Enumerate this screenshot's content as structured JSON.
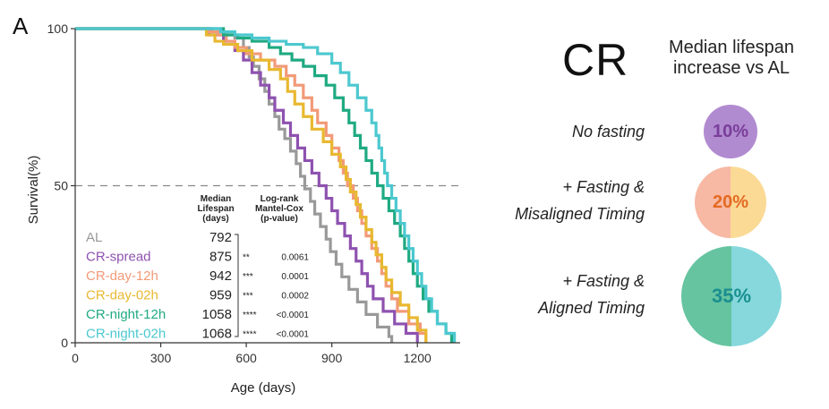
{
  "panel_label": "A",
  "chart_data": {
    "type": "line",
    "subtype": "kaplan-meier",
    "xlabel": "Age (days)",
    "ylabel": "Survival(%)",
    "xlim": [
      0,
      1350
    ],
    "ylim": [
      0,
      100
    ],
    "xticks": [
      0,
      300,
      600,
      900,
      1200
    ],
    "yticks": [
      0,
      50,
      100
    ],
    "reference_line": {
      "y": 50,
      "style": "dashed"
    },
    "table_headers": {
      "median": [
        "Median",
        "Lifespan",
        "(days)"
      ],
      "logrank": [
        "Log-rank",
        "Mantel-Cox",
        "(p-value)"
      ]
    },
    "series": [
      {
        "name": "AL",
        "color": "#999999",
        "median": "792",
        "sig": "",
        "p": "",
        "points": [
          [
            0,
            100
          ],
          [
            420,
            100
          ],
          [
            480,
            99
          ],
          [
            520,
            98
          ],
          [
            560,
            97
          ],
          [
            590,
            94
          ],
          [
            610,
            91
          ],
          [
            625,
            88
          ],
          [
            645,
            84
          ],
          [
            665,
            80
          ],
          [
            680,
            76
          ],
          [
            700,
            72
          ],
          [
            715,
            68
          ],
          [
            735,
            65
          ],
          [
            755,
            61
          ],
          [
            775,
            57
          ],
          [
            790,
            53
          ],
          [
            805,
            49
          ],
          [
            825,
            45
          ],
          [
            840,
            41
          ],
          [
            860,
            37
          ],
          [
            880,
            33
          ],
          [
            895,
            29
          ],
          [
            915,
            25
          ],
          [
            935,
            21
          ],
          [
            960,
            17
          ],
          [
            990,
            13
          ],
          [
            1020,
            9
          ],
          [
            1060,
            5
          ],
          [
            1100,
            2
          ],
          [
            1110,
            0
          ]
        ]
      },
      {
        "name": "CR-spread",
        "color": "#8E52B0",
        "median": "875",
        "sig": "**",
        "p": "0.0061",
        "points": [
          [
            0,
            100
          ],
          [
            430,
            100
          ],
          [
            470,
            98
          ],
          [
            520,
            96
          ],
          [
            560,
            93
          ],
          [
            590,
            90
          ],
          [
            620,
            86
          ],
          [
            650,
            82
          ],
          [
            680,
            78
          ],
          [
            700,
            74
          ],
          [
            730,
            70
          ],
          [
            755,
            66
          ],
          [
            780,
            62
          ],
          [
            805,
            58
          ],
          [
            830,
            54
          ],
          [
            855,
            50
          ],
          [
            880,
            46
          ],
          [
            900,
            42
          ],
          [
            920,
            38
          ],
          [
            945,
            34
          ],
          [
            965,
            30
          ],
          [
            985,
            26
          ],
          [
            1005,
            22
          ],
          [
            1025,
            18
          ],
          [
            1045,
            14
          ],
          [
            1080,
            10
          ],
          [
            1120,
            6
          ],
          [
            1160,
            3
          ],
          [
            1200,
            0
          ]
        ]
      },
      {
        "name": "CR-day-12h",
        "color": "#F29A78",
        "median": "942",
        "sig": "***",
        "p": "0.0001",
        "points": [
          [
            0,
            100
          ],
          [
            430,
            100
          ],
          [
            470,
            99
          ],
          [
            500,
            98
          ],
          [
            530,
            96
          ],
          [
            560,
            94
          ],
          [
            600,
            92
          ],
          [
            650,
            90
          ],
          [
            700,
            88
          ],
          [
            740,
            85
          ],
          [
            770,
            82
          ],
          [
            800,
            78
          ],
          [
            830,
            74
          ],
          [
            850,
            70
          ],
          [
            880,
            66
          ],
          [
            900,
            62
          ],
          [
            925,
            58
          ],
          [
            940,
            54
          ],
          [
            955,
            50
          ],
          [
            975,
            46
          ],
          [
            990,
            42
          ],
          [
            1005,
            38
          ],
          [
            1020,
            34
          ],
          [
            1040,
            30
          ],
          [
            1060,
            26
          ],
          [
            1075,
            22
          ],
          [
            1090,
            18
          ],
          [
            1110,
            14
          ],
          [
            1130,
            10
          ],
          [
            1170,
            6
          ],
          [
            1210,
            3
          ],
          [
            1230,
            0
          ]
        ]
      },
      {
        "name": "CR-day-02h",
        "color": "#E8B830",
        "median": "959",
        "sig": "***",
        "p": "0.0002",
        "points": [
          [
            0,
            100
          ],
          [
            430,
            100
          ],
          [
            460,
            98
          ],
          [
            490,
            96
          ],
          [
            520,
            95
          ],
          [
            570,
            93
          ],
          [
            620,
            90
          ],
          [
            680,
            87
          ],
          [
            720,
            84
          ],
          [
            745,
            80
          ],
          [
            770,
            76
          ],
          [
            800,
            72
          ],
          [
            830,
            68
          ],
          [
            870,
            64
          ],
          [
            900,
            60
          ],
          [
            930,
            56
          ],
          [
            950,
            52
          ],
          [
            965,
            48
          ],
          [
            985,
            44
          ],
          [
            1000,
            40
          ],
          [
            1020,
            36
          ],
          [
            1040,
            32
          ],
          [
            1055,
            28
          ],
          [
            1075,
            24
          ],
          [
            1090,
            20
          ],
          [
            1110,
            16
          ],
          [
            1140,
            12
          ],
          [
            1170,
            8
          ],
          [
            1200,
            4
          ],
          [
            1230,
            0
          ]
        ]
      },
      {
        "name": "CR-night-12h",
        "color": "#1FAA82",
        "median": "1058",
        "sig": "****",
        "p": "<0.0001",
        "points": [
          [
            0,
            100
          ],
          [
            470,
            100
          ],
          [
            520,
            98
          ],
          [
            570,
            97
          ],
          [
            620,
            96
          ],
          [
            680,
            94
          ],
          [
            720,
            92
          ],
          [
            760,
            90
          ],
          [
            800,
            88
          ],
          [
            840,
            85
          ],
          [
            880,
            82
          ],
          [
            910,
            78
          ],
          [
            940,
            74
          ],
          [
            960,
            70
          ],
          [
            980,
            66
          ],
          [
            1000,
            62
          ],
          [
            1020,
            58
          ],
          [
            1040,
            54
          ],
          [
            1060,
            50
          ],
          [
            1080,
            46
          ],
          [
            1100,
            42
          ],
          [
            1120,
            38
          ],
          [
            1140,
            34
          ],
          [
            1155,
            30
          ],
          [
            1170,
            26
          ],
          [
            1185,
            22
          ],
          [
            1200,
            18
          ],
          [
            1220,
            14
          ],
          [
            1240,
            10
          ],
          [
            1270,
            6
          ],
          [
            1300,
            3
          ],
          [
            1320,
            0
          ]
        ]
      },
      {
        "name": "CR-night-02h",
        "color": "#4CC8CF",
        "median": "1068",
        "sig": "****",
        "p": "<0.0001",
        "points": [
          [
            0,
            100
          ],
          [
            480,
            100
          ],
          [
            510,
            99
          ],
          [
            560,
            98
          ],
          [
            620,
            97
          ],
          [
            680,
            96
          ],
          [
            740,
            95
          ],
          [
            800,
            94
          ],
          [
            850,
            92
          ],
          [
            900,
            89
          ],
          [
            930,
            86
          ],
          [
            960,
            82
          ],
          [
            990,
            78
          ],
          [
            1020,
            74
          ],
          [
            1040,
            70
          ],
          [
            1055,
            66
          ],
          [
            1065,
            62
          ],
          [
            1075,
            58
          ],
          [
            1085,
            54
          ],
          [
            1095,
            50
          ],
          [
            1110,
            46
          ],
          [
            1125,
            42
          ],
          [
            1140,
            38
          ],
          [
            1155,
            34
          ],
          [
            1170,
            30
          ],
          [
            1185,
            26
          ],
          [
            1200,
            22
          ],
          [
            1215,
            18
          ],
          [
            1230,
            14
          ],
          [
            1250,
            10
          ],
          [
            1270,
            6
          ],
          [
            1300,
            3
          ],
          [
            1330,
            0
          ]
        ]
      }
    ]
  },
  "summary": {
    "title": "CR",
    "subtitle_line1": "Median lifespan",
    "subtitle_line2": "increase vs AL",
    "rows": [
      {
        "label_line1": "No fasting",
        "label_line2": "",
        "percent": "10%",
        "color_left": "#B18BD0",
        "color_right": "#B18BD0",
        "text_color": "#7A3E9A"
      },
      {
        "label_line1": "+ Fasting &",
        "label_line2": "Misaligned Timing",
        "percent": "20%",
        "color_left": "#F7B8A4",
        "color_right": "#FBDA96",
        "text_color": "#E46A22"
      },
      {
        "label_line1": "+ Fasting &",
        "label_line2": "Aligned Timing",
        "percent": "35%",
        "color_left": "#66C4A0",
        "color_right": "#86D8DC",
        "text_color": "#1A8F8F"
      }
    ]
  }
}
